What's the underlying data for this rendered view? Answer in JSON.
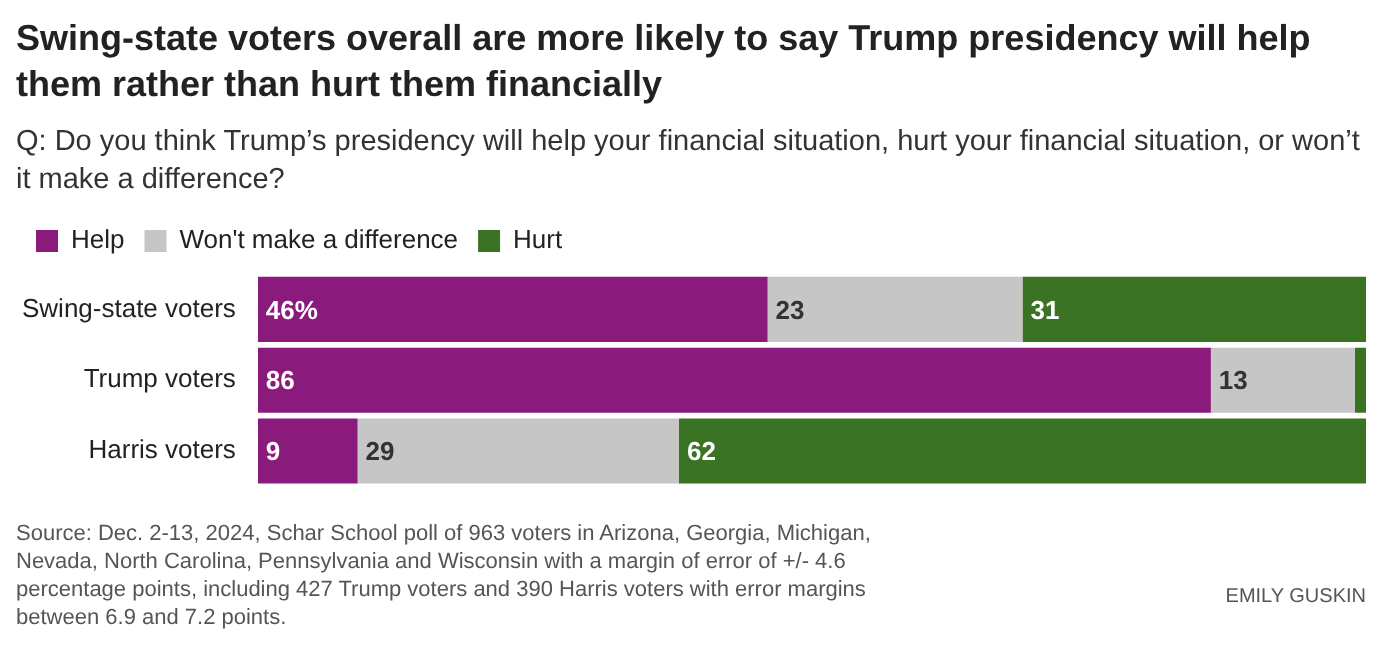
{
  "chart_data": {
    "type": "bar",
    "orientation": "horizontal",
    "stacked": true,
    "title": "Swing-state voters overall are more likely to say Trump presidency will help them rather than hurt them financially",
    "subtitle": "Q: Do you think Trump’s presidency will help your financial situation, hurt your financial situation, or won’t it make a difference?",
    "categories": [
      "Swing-state voters",
      "Trump voters",
      "Harris voters"
    ],
    "series": [
      {
        "name": "Help",
        "color": "#8b1a7d",
        "values": [
          46,
          86,
          9
        ],
        "value_labels": [
          "46%",
          "86",
          "9"
        ]
      },
      {
        "name": "Won't make a difference",
        "color": "#c6c6c6",
        "values": [
          23,
          13,
          29
        ],
        "value_labels": [
          "23",
          "13",
          "29"
        ]
      },
      {
        "name": "Hurt",
        "color": "#3b7324",
        "values": [
          31,
          1,
          62
        ],
        "value_labels": [
          "31",
          null,
          "62"
        ]
      }
    ],
    "xlim": [
      0,
      100
    ],
    "tick_labels": "y",
    "legend": "top left",
    "annotations": [
      "Source: Dec. 2-13, 2024, Schar School poll of 963 voters in Arizona, Georgia, Michigan, Nevada, North Carolina, Pennsylvania and Wisconsin with a margin of error of +/- 4.6 percentage points, including 427 Trump voters and 390 Harris voters with error margins between 6.9 and 7.2 points.",
      "EMILY GUSKIN"
    ]
  }
}
